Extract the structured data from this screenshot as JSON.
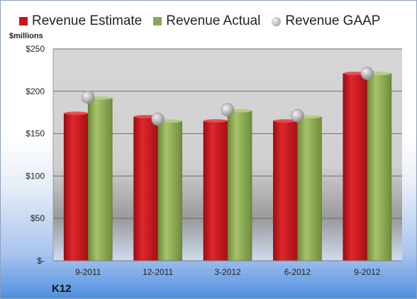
{
  "units_label": "$millions",
  "company": "K12",
  "legend": {
    "estimate": "Revenue Estimate",
    "actual": "Revenue Actual",
    "gaap": "Revenue GAAP"
  },
  "colors": {
    "estimate": "#c8141b",
    "actual": "#8aa755",
    "gaap": "#b5b5b5"
  },
  "chart_data": {
    "type": "bar",
    "title": "",
    "xlabel": "",
    "ylabel": "$millions",
    "legend_position": "top",
    "grid": true,
    "categories": [
      "9-2011",
      "12-2011",
      "3-2012",
      "6-2012",
      "9-2012"
    ],
    "ylim": [
      0,
      250
    ],
    "yticks": [
      0,
      50,
      100,
      150,
      200,
      250
    ],
    "ytick_labels": [
      "$-",
      "$50",
      "$100",
      "$150",
      "$200",
      "$250"
    ],
    "series": [
      {
        "name": "Revenue Estimate",
        "kind": "bar",
        "values": [
          174,
          170,
          165,
          165,
          221
        ]
      },
      {
        "name": "Revenue Actual",
        "kind": "bar",
        "values": [
          192,
          165,
          177,
          170,
          221
        ]
      },
      {
        "name": "Revenue GAAP",
        "kind": "marker",
        "values": [
          193,
          167,
          178,
          171,
          221
        ]
      }
    ]
  }
}
